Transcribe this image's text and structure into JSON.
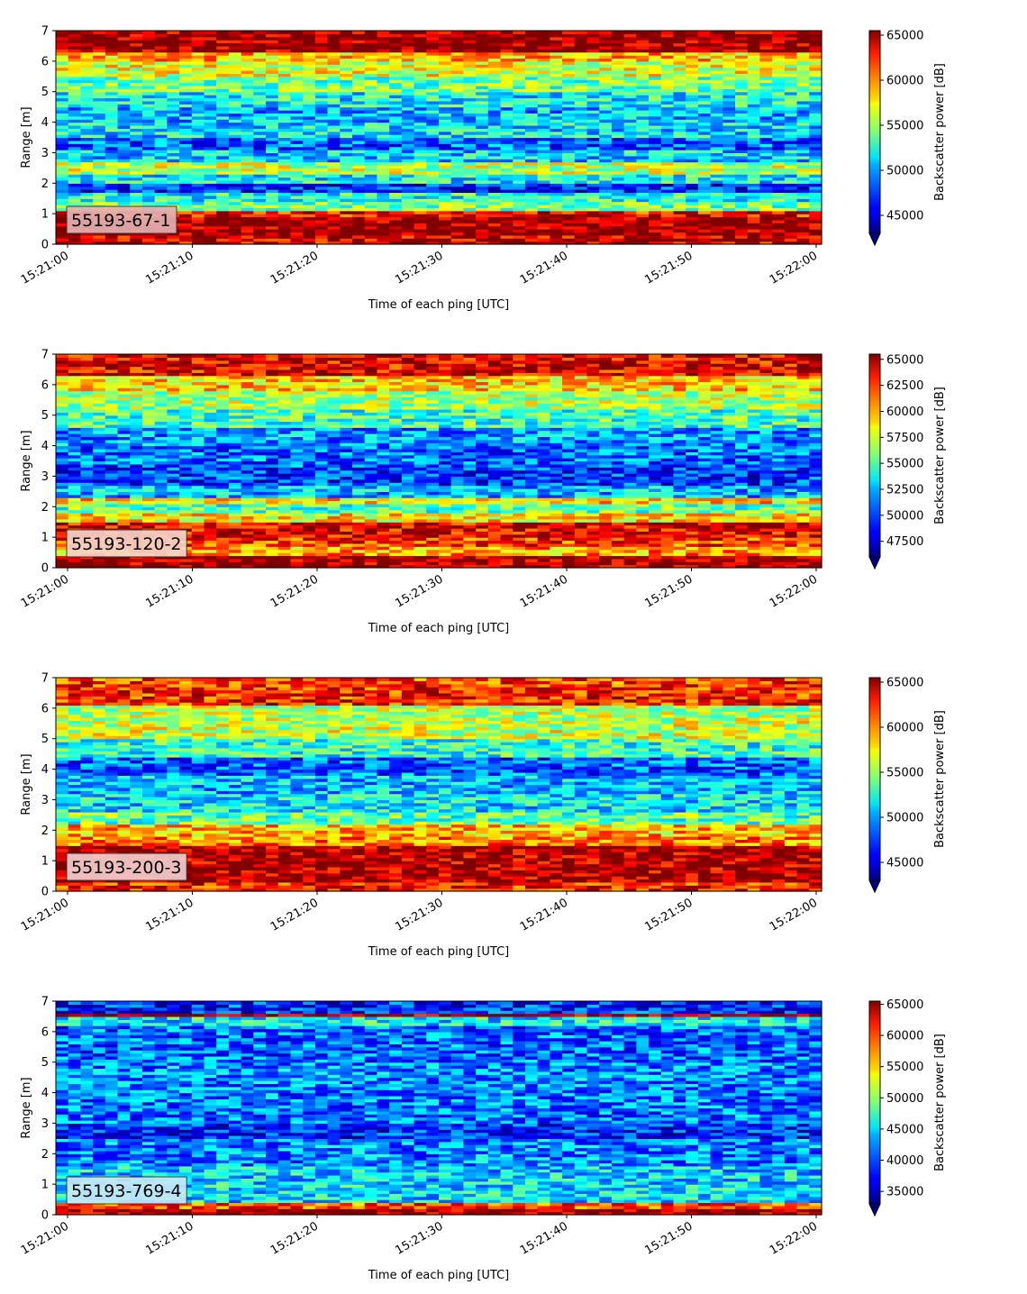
{
  "chart_data": [
    {
      "type": "heatmap",
      "label_box": "55193-67-1",
      "label_box_color": "#e3b0b0",
      "xlabel": "Time of each ping [UTC]",
      "ylabel": "Range [m]",
      "colorbar_label": "Backscatter power [dB]",
      "x_ticks": [
        "15:21:00",
        "15:21:10",
        "15:21:20",
        "15:21:30",
        "15:21:40",
        "15:21:50",
        "15:22:00"
      ],
      "y_ticks": [
        "0",
        "1",
        "2",
        "3",
        "4",
        "5",
        "6",
        "7"
      ],
      "ylim": [
        0,
        7
      ],
      "colorbar_ticks": [
        "45000",
        "50000",
        "55000",
        "60000",
        "65000"
      ],
      "colorbar_range": [
        43000,
        65500
      ],
      "colormap": "jet",
      "colorbar_extend": "min",
      "range_profile": [
        [
          0.0,
          0.28,
          64000
        ],
        [
          0.28,
          0.9,
          65000
        ],
        [
          0.9,
          1.1,
          62500
        ],
        [
          1.1,
          1.45,
          54000
        ],
        [
          1.45,
          1.75,
          52000
        ],
        [
          1.75,
          2.05,
          46500
        ],
        [
          2.05,
          2.3,
          51500
        ],
        [
          2.3,
          2.75,
          55500
        ],
        [
          2.75,
          3.15,
          50500
        ],
        [
          3.15,
          3.5,
          48000
        ],
        [
          3.5,
          4.0,
          51000
        ],
        [
          4.0,
          4.5,
          50000
        ],
        [
          4.5,
          5.0,
          51500
        ],
        [
          5.0,
          5.5,
          54000
        ],
        [
          5.5,
          6.0,
          56500
        ],
        [
          6.0,
          6.3,
          58500
        ],
        [
          6.3,
          7.0,
          65000
        ]
      ]
    },
    {
      "type": "heatmap",
      "label_box": "55193-120-2",
      "label_box_color": "#f6d3c8",
      "xlabel": "Time of each ping [UTC]",
      "ylabel": "Range [m]",
      "colorbar_label": "Backscatter power [dB]",
      "x_ticks": [
        "15:21:00",
        "15:21:10",
        "15:21:20",
        "15:21:30",
        "15:21:40",
        "15:21:50",
        "15:22:00"
      ],
      "y_ticks": [
        "0",
        "1",
        "2",
        "3",
        "4",
        "5",
        "6",
        "7"
      ],
      "ylim": [
        0,
        7
      ],
      "colorbar_ticks": [
        "47500",
        "50000",
        "52500",
        "55000",
        "57500",
        "60000",
        "62500",
        "65000"
      ],
      "colorbar_range": [
        46000,
        65500
      ],
      "colormap": "jet",
      "colorbar_extend": "min",
      "range_profile": [
        [
          0.0,
          0.45,
          65000
        ],
        [
          0.45,
          0.7,
          60000
        ],
        [
          0.7,
          1.0,
          62000
        ],
        [
          1.0,
          1.5,
          63500
        ],
        [
          1.5,
          1.8,
          58500
        ],
        [
          1.8,
          2.1,
          55000
        ],
        [
          2.1,
          2.35,
          59000
        ],
        [
          2.35,
          2.7,
          52000
        ],
        [
          2.7,
          3.3,
          49500
        ],
        [
          3.3,
          4.0,
          50500
        ],
        [
          4.0,
          4.6,
          51500
        ],
        [
          4.6,
          5.2,
          54500
        ],
        [
          5.2,
          5.8,
          56500
        ],
        [
          5.8,
          6.3,
          59000
        ],
        [
          6.3,
          7.0,
          63500
        ]
      ]
    },
    {
      "type": "heatmap",
      "label_box": "55193-200-3",
      "label_box_color": "#f2cccc",
      "xlabel": "Time of each ping [UTC]",
      "ylabel": "Range [m]",
      "colorbar_label": "Backscatter power [dB]",
      "x_ticks": [
        "15:21:00",
        "15:21:10",
        "15:21:20",
        "15:21:30",
        "15:21:40",
        "15:21:50",
        "15:22:00"
      ],
      "y_ticks": [
        "0",
        "1",
        "2",
        "3",
        "4",
        "5",
        "6",
        "7"
      ],
      "ylim": [
        0,
        7
      ],
      "colorbar_ticks": [
        "45000",
        "50000",
        "55000",
        "60000",
        "65000"
      ],
      "colorbar_range": [
        43000,
        65500
      ],
      "colormap": "jet",
      "colorbar_extend": "min",
      "range_profile": [
        [
          0.0,
          0.3,
          62000
        ],
        [
          0.3,
          1.5,
          64500
        ],
        [
          1.5,
          1.8,
          60000
        ],
        [
          1.8,
          2.2,
          58500
        ],
        [
          2.2,
          2.6,
          53500
        ],
        [
          2.6,
          3.2,
          51000
        ],
        [
          3.2,
          3.8,
          50000
        ],
        [
          3.8,
          4.4,
          48000
        ],
        [
          4.4,
          5.0,
          52500
        ],
        [
          5.0,
          5.6,
          56000
        ],
        [
          5.6,
          6.1,
          55500
        ],
        [
          6.1,
          6.6,
          62000
        ],
        [
          6.6,
          7.0,
          61500
        ]
      ]
    },
    {
      "type": "heatmap",
      "label_box": "55193-769-4",
      "label_box_color": "#c6e8f8",
      "xlabel": "Time of each ping [UTC]",
      "ylabel": "Range [m]",
      "colorbar_label": "Backscatter power [dB]",
      "x_ticks": [
        "15:21:00",
        "15:21:10",
        "15:21:20",
        "15:21:30",
        "15:21:40",
        "15:21:50",
        "15:22:00"
      ],
      "y_ticks": [
        "0",
        "1",
        "2",
        "3",
        "4",
        "5",
        "6",
        "7"
      ],
      "ylim": [
        0,
        7
      ],
      "colorbar_ticks": [
        "35000",
        "40000",
        "45000",
        "50000",
        "55000",
        "60000",
        "65000"
      ],
      "colorbar_range": [
        33000,
        65500
      ],
      "colormap": "jet",
      "colorbar_extend": "min",
      "range_profile": [
        [
          0.0,
          0.2,
          64500
        ],
        [
          0.2,
          0.38,
          59000
        ],
        [
          0.38,
          1.0,
          44500
        ],
        [
          1.0,
          1.6,
          44000
        ],
        [
          1.6,
          2.5,
          41500
        ],
        [
          2.5,
          3.0,
          38000
        ],
        [
          3.0,
          4.0,
          41000
        ],
        [
          4.0,
          5.0,
          41500
        ],
        [
          5.0,
          6.2,
          40500
        ],
        [
          6.2,
          6.45,
          45000
        ],
        [
          6.45,
          6.62,
          64000
        ],
        [
          6.62,
          7.0,
          38500
        ]
      ]
    }
  ]
}
